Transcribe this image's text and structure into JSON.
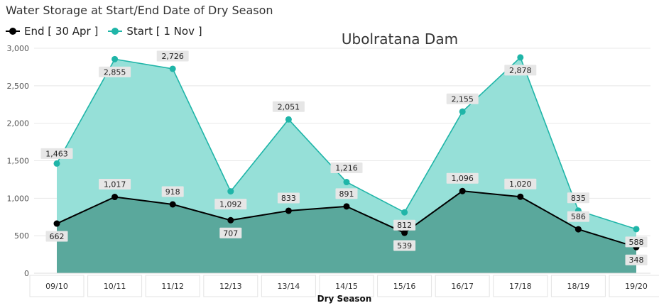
{
  "page_title": "Water Storage at Start/End Date of Dry Season",
  "legend": {
    "end_label": "End [ 30 Apr ]",
    "start_label": "Start [ 1 Nov ]"
  },
  "colors": {
    "end_line": "#000000",
    "end_fill": "#5aa89c",
    "start_line": "#1fb5a8",
    "start_fill": "#96e0d8",
    "grid": "#e8e8e8",
    "label_bg": "#e6e6e6"
  },
  "chart_data": {
    "type": "area",
    "title": "Ubolratana Dam",
    "xlabel": "Dry  Season",
    "ylabel": "",
    "ylim": [
      0,
      3000
    ],
    "yticks": [
      0,
      500,
      1000,
      1500,
      2000,
      2500,
      3000
    ],
    "ytick_labels": [
      "0",
      "500",
      "1,000",
      "1,500",
      "2,000",
      "2,500",
      "3,000"
    ],
    "categories": [
      "09/10",
      "10/11",
      "11/12",
      "12/13",
      "13/14",
      "14/15",
      "15/16",
      "16/17",
      "17/18",
      "18/19",
      "19/20"
    ],
    "series": [
      {
        "name": "Start [ 1 Nov ]",
        "values": [
          1463,
          2855,
          2726,
          1092,
          2051,
          1216,
          812,
          2155,
          2878,
          835,
          588
        ],
        "labels": [
          "1,463",
          "2,855",
          "2,726",
          "1,092",
          "2,051",
          "1,216",
          "812",
          "2,155",
          "2,878",
          "835",
          "588"
        ]
      },
      {
        "name": "End [ 30 Apr ]",
        "values": [
          662,
          1017,
          918,
          707,
          833,
          891,
          539,
          1096,
          1020,
          586,
          348
        ],
        "labels": [
          "662",
          "1,017",
          "918",
          "707",
          "833",
          "891",
          "539",
          "1,096",
          "1,020",
          "586",
          "348"
        ]
      }
    ]
  }
}
